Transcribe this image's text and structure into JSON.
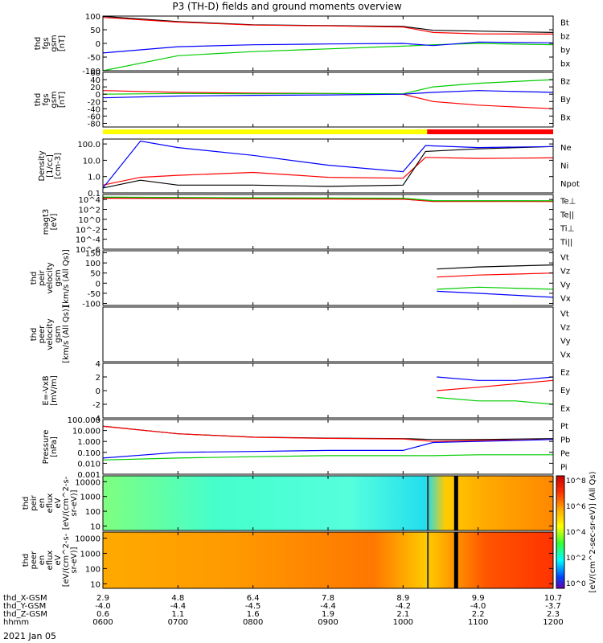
{
  "title": "P3 (TH-D) fields and ground moments overview",
  "date_label": "2021 Jan 05",
  "colorbar_label": "[eV/(cm^2-sec-sr-eV)] (All Qs)",
  "colorbar_ticks": [
    "10^8",
    "10^6",
    "10^4",
    "10^2",
    "10^0"
  ],
  "orbit_bar": {
    "colors": [
      "#ffff00",
      "#ff0000"
    ],
    "break_fraction": 0.72
  },
  "xaxis": {
    "rows": [
      {
        "label": "thd_X-GSM",
        "values": [
          "2.9",
          "4.8",
          "6.4",
          "7.8",
          "8.9",
          "9.9",
          "10.7"
        ]
      },
      {
        "label": "thd_Y-GSM",
        "values": [
          "-4.0",
          "-4.4",
          "-4.5",
          "-4.4",
          "-4.2",
          "-4.0",
          "-3.7"
        ]
      },
      {
        "label": "thd_Z-GSM",
        "values": [
          "0.6",
          "1.1",
          "1.6",
          "1.9",
          "2.1",
          "2.2",
          "2.3"
        ]
      },
      {
        "label": "hhmm",
        "values": [
          "0600",
          "0700",
          "0800",
          "0900",
          "1000",
          "1100",
          "1200"
        ]
      }
    ]
  },
  "chart_data": [
    {
      "type": "line",
      "name": "fgs",
      "ylabel": [
        "thd",
        "fgs",
        "gsm",
        "[nT]"
      ],
      "ylim": [
        -100,
        100
      ],
      "yticks": [
        "100",
        "50",
        "0",
        "-50",
        "-100"
      ],
      "ytick_values": [
        100,
        50,
        0,
        -50,
        -100
      ],
      "legend": [
        {
          "name": "Bt",
          "color": "#000000"
        },
        {
          "name": "bz",
          "color": "#ff0000"
        },
        {
          "name": "by",
          "color": "#00cc00"
        },
        {
          "name": "bx",
          "color": "#0000ff"
        }
      ],
      "x": [
        6.0,
        7.0,
        8.0,
        9.0,
        10.0,
        10.4,
        11.0,
        12.0
      ],
      "series": [
        {
          "name": "Bt",
          "values": [
            99,
            80,
            68,
            65,
            62,
            48,
            45,
            40
          ]
        },
        {
          "name": "bz",
          "values": [
            95,
            78,
            67,
            64,
            60,
            40,
            35,
            34
          ]
        },
        {
          "name": "by",
          "values": [
            -100,
            -45,
            -30,
            -20,
            -10,
            -5,
            0,
            -5
          ]
        },
        {
          "name": "bx",
          "values": [
            -35,
            -12,
            -5,
            -2,
            0,
            -8,
            5,
            2
          ]
        }
      ]
    },
    {
      "type": "line",
      "name": "fgs-dsl",
      "ylabel": [
        "thd",
        "fgs",
        "gsm",
        "[nT]"
      ],
      "ylim": [
        -90,
        60
      ],
      "yticks": [
        "60",
        "40",
        "20",
        "0",
        "-20",
        "-40",
        "-60",
        "-80"
      ],
      "ytick_values": [
        60,
        40,
        20,
        0,
        -20,
        -40,
        -60,
        -80
      ],
      "legend": [
        {
          "name": "Bz",
          "color": "#ff0000"
        },
        {
          "name": "By",
          "color": "#00cc00"
        },
        {
          "name": "Bx",
          "color": "#0000ff"
        }
      ],
      "x": [
        6.0,
        7.0,
        8.0,
        9.0,
        10.0,
        10.4,
        11.0,
        12.0
      ],
      "series": [
        {
          "name": "Bz",
          "values": [
            10,
            5,
            3,
            2,
            0,
            -20,
            -30,
            -40
          ]
        },
        {
          "name": "By",
          "values": [
            0,
            2,
            1,
            2,
            1,
            20,
            30,
            40
          ]
        },
        {
          "name": "Bx",
          "values": [
            -10,
            -5,
            -3,
            -2,
            0,
            5,
            10,
            5
          ]
        }
      ]
    },
    {
      "type": "line",
      "name": "density",
      "scale": "log",
      "ylabel": [
        "Density",
        "[1/cc]",
        "[cm-3]"
      ],
      "ylim": [
        0.1,
        200
      ],
      "yticks": [
        "100.0",
        "10.0",
        "1.0",
        "0.1"
      ],
      "ytick_values": [
        100,
        10,
        1,
        0.1
      ],
      "legend": [
        {
          "name": "Ne",
          "color": "#ff0000"
        },
        {
          "name": "Ni",
          "color": "#000000"
        },
        {
          "name": "Npot",
          "color": "#0000ff"
        }
      ],
      "x": [
        6.0,
        6.5,
        7.0,
        8.0,
        9.0,
        10.0,
        10.3,
        11.0,
        12.0
      ],
      "series": [
        {
          "name": "Ne",
          "values": [
            0.3,
            0.9,
            1.2,
            1.8,
            0.9,
            0.8,
            15,
            13,
            14
          ]
        },
        {
          "name": "Ni",
          "values": [
            0.2,
            0.6,
            0.3,
            0.3,
            0.25,
            0.3,
            35,
            50,
            70
          ]
        },
        {
          "name": "Npot",
          "values": [
            0.2,
            150,
            60,
            20,
            5,
            2,
            80,
            60,
            70
          ]
        }
      ]
    },
    {
      "type": "line",
      "name": "temperature",
      "scale": "log",
      "ylabel": [
        "magt3",
        "[eV]"
      ],
      "ylim": [
        1e-06,
        100000
      ],
      "yticks": [
        "10^4",
        "10^2",
        "10^0",
        "10^-2",
        "10^-4",
        "10^-6"
      ],
      "ytick_values": [
        10000,
        100,
        1,
        0.01,
        0.0001,
        1e-06
      ],
      "legend": [
        {
          "name": "Te⊥",
          "color": "#ff0000"
        },
        {
          "name": "Te||",
          "color": "#000000"
        },
        {
          "name": "Ti⊥",
          "color": "#ff0000"
        },
        {
          "name": "Ti||",
          "color": "#00cc00"
        }
      ],
      "x": [
        6.0,
        8.0,
        10.0,
        10.4,
        12.0
      ],
      "series": [
        {
          "name": "Te⊥",
          "values": [
            20000,
            15000,
            12000,
            4000,
            4000
          ]
        },
        {
          "name": "Te||",
          "values": [
            25000,
            18000,
            15000,
            5000,
            5000
          ]
        },
        {
          "name": "Ti⊥",
          "values": [
            18000,
            14000,
            11000,
            4500,
            4200
          ]
        },
        {
          "name": "Ti||",
          "values": [
            30000,
            22000,
            18000,
            6000,
            5500
          ]
        }
      ]
    },
    {
      "type": "line",
      "name": "peir-velocity",
      "ylabel": [
        "thd",
        "peir",
        "velocity",
        "gsm",
        "[km/s (All Qs)]"
      ],
      "ylim": [
        -110,
        160
      ],
      "yticks": [
        "150",
        "100",
        "50",
        "0",
        "-50",
        "-100"
      ],
      "ytick_values": [
        150,
        100,
        50,
        0,
        -50,
        -100
      ],
      "legend": [
        {
          "name": "Vt",
          "color": "#000000"
        },
        {
          "name": "Vz",
          "color": "#ff0000"
        },
        {
          "name": "Vy",
          "color": "#00cc00"
        },
        {
          "name": "Vx",
          "color": "#0000ff"
        }
      ],
      "x": [
        10.45,
        11.0,
        11.5,
        12.0
      ],
      "series": [
        {
          "name": "Vt",
          "values": [
            70,
            80,
            85,
            90
          ]
        },
        {
          "name": "Vz",
          "values": [
            30,
            40,
            45,
            50
          ]
        },
        {
          "name": "Vy",
          "values": [
            -30,
            -20,
            -25,
            -30
          ]
        },
        {
          "name": "Vx",
          "values": [
            -40,
            -50,
            -60,
            -70
          ]
        }
      ]
    },
    {
      "type": "line",
      "name": "peer-velocity",
      "ylabel": [
        "thd",
        "peer",
        "velocity",
        "gsm",
        "[km/s (All Qs)]"
      ],
      "ylim": [
        -100,
        100
      ],
      "yticks": [],
      "ytick_values": [],
      "legend": [
        {
          "name": "Vt",
          "color": "#000000"
        },
        {
          "name": "Vz",
          "color": "#ff0000"
        },
        {
          "name": "Vy",
          "color": "#00cc00"
        },
        {
          "name": "Vx",
          "color": "#0000ff"
        }
      ],
      "x": [],
      "series": []
    },
    {
      "type": "line",
      "name": "efield",
      "ylabel": [
        "E=-VxB",
        "[mV/m]"
      ],
      "ylim": [
        -4,
        4
      ],
      "yticks": [
        "4",
        "2",
        "0",
        "-2",
        "-4"
      ],
      "ytick_values": [
        4,
        2,
        0,
        -2,
        -4
      ],
      "legend": [
        {
          "name": "Ez",
          "color": "#ff0000"
        },
        {
          "name": "Ey",
          "color": "#00cc00"
        },
        {
          "name": "Ex",
          "color": "#0000ff"
        }
      ],
      "x": [
        10.45,
        11.0,
        11.5,
        12.0
      ],
      "series": [
        {
          "name": "Ez",
          "values": [
            0,
            0.5,
            1.0,
            1.5
          ]
        },
        {
          "name": "Ey",
          "values": [
            -1.0,
            -1.5,
            -1.5,
            -2.0
          ]
        },
        {
          "name": "Ex",
          "values": [
            2.0,
            1.5,
            1.5,
            2.0
          ]
        }
      ]
    },
    {
      "type": "line",
      "name": "pressure",
      "scale": "log",
      "ylabel": [
        "Pressure",
        "[nPa]"
      ],
      "ylim": [
        0.001,
        100
      ],
      "yticks": [
        "100.000",
        "10.000",
        "1.000",
        "0.100",
        "0.010",
        "0.001"
      ],
      "ytick_values": [
        100,
        10,
        1,
        0.1,
        0.01,
        0.001
      ],
      "legend": [
        {
          "name": "Pt",
          "color": "#000000"
        },
        {
          "name": "Pb",
          "color": "#ff0000"
        },
        {
          "name": "Pe",
          "color": "#00cc00"
        },
        {
          "name": "Pi",
          "color": "#0000ff"
        }
      ],
      "x": [
        6.0,
        7.0,
        8.0,
        9.0,
        10.0,
        10.4,
        11.0,
        12.0
      ],
      "series": [
        {
          "name": "Pt",
          "values": [
            25,
            5,
            2.5,
            2.0,
            1.8,
            1.5,
            1.5,
            1.8
          ]
        },
        {
          "name": "Pb",
          "values": [
            24,
            5,
            2.4,
            1.9,
            1.7,
            1.0,
            1.2,
            1.5
          ]
        },
        {
          "name": "Pe",
          "values": [
            0.02,
            0.03,
            0.04,
            0.05,
            0.05,
            0.05,
            0.06,
            0.06
          ]
        },
        {
          "name": "Pi",
          "values": [
            0.03,
            0.1,
            0.12,
            0.15,
            0.15,
            0.8,
            1.0,
            1.5
          ]
        }
      ]
    },
    {
      "type": "heatmap",
      "name": "peir-eflux",
      "scale": "log",
      "ylabel": [
        "thd",
        "peir",
        "en",
        "eflux",
        "eV",
        "[eV/(cm^2-s-",
        "sr-eV)]"
      ],
      "ylim": [
        5,
        25000
      ],
      "yticks": [
        "10000",
        "1000",
        "100",
        "10"
      ],
      "ytick_values": [
        10000,
        1000,
        100,
        10
      ]
    },
    {
      "type": "heatmap",
      "name": "peer-eflux",
      "scale": "log",
      "ylabel": [
        "thd",
        "peer",
        "en",
        "eflux",
        "eV",
        "[eV/(cm^2-s-",
        "sr-eV)]"
      ],
      "ylim": [
        5,
        25000
      ],
      "yticks": [
        "10000",
        "1000",
        "100",
        "10"
      ],
      "ytick_values": [
        10000,
        1000,
        100,
        10
      ]
    }
  ]
}
